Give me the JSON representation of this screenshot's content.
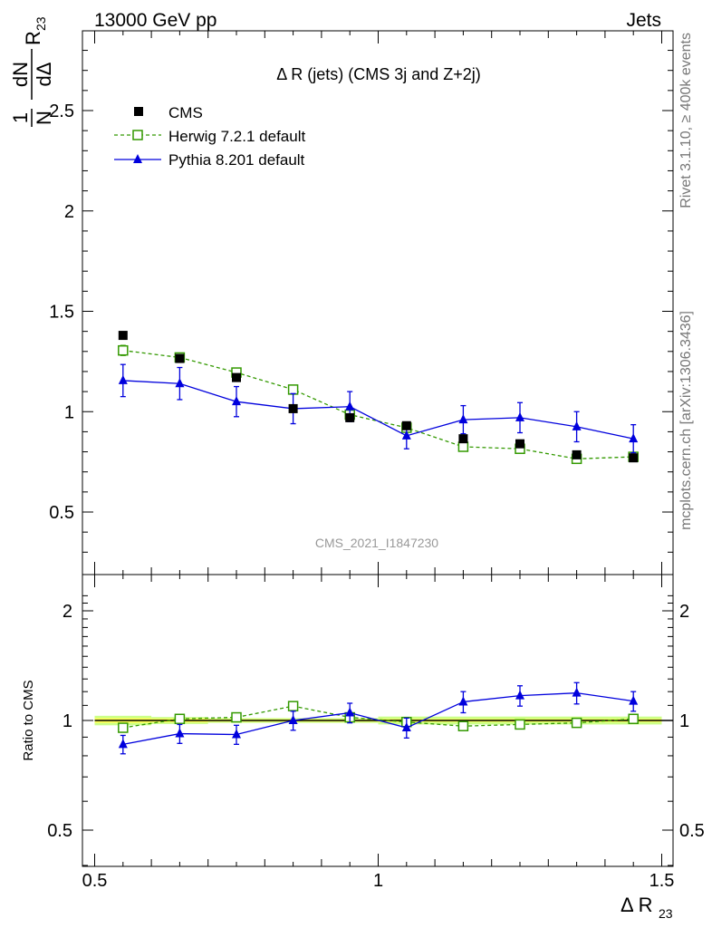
{
  "header": {
    "energy_label": "13000 GeV pp",
    "category_label": "Jets"
  },
  "side_labels": {
    "rivet": "Rivet 3.1.10, ≥ 400k events",
    "mcplots": "mcplots.cern.ch [arXiv:1306.3436]"
  },
  "colors": {
    "data": "#000000",
    "herwig": "#339900",
    "pythia": "#0000dd",
    "band_inner": "#ffff55",
    "band_outer": "#ccff88",
    "watermark": "#999999"
  },
  "chart_data": [
    {
      "type": "scatter",
      "panel": "main",
      "title": "Δ R (jets) (CMS 3j and Z+2j)",
      "watermark": "CMS_2021_I1847230",
      "ylabel": "1/N dN/dΔ R23",
      "xlim": [
        0.5,
        1.5
      ],
      "ylim": [
        0.2,
        2.95
      ],
      "yscale": "linear",
      "yticks": [
        0.5,
        1,
        1.5,
        2,
        2.5
      ],
      "ytick_labels": [
        "0.5",
        "1",
        "1.5",
        "2",
        "2.5"
      ],
      "legend_position": "top-left",
      "x": [
        0.55,
        0.65,
        0.75,
        0.85,
        0.95,
        1.05,
        1.15,
        1.25,
        1.35,
        1.45
      ],
      "series": [
        {
          "name": "CMS",
          "style": "markers",
          "marker": "square-filled",
          "values": [
            1.38,
            1.265,
            1.17,
            1.015,
            0.97,
            0.93,
            0.865,
            0.84,
            0.785,
            0.77
          ],
          "errors": [
            0.01,
            0.01,
            0.01,
            0.01,
            0.01,
            0.01,
            0.01,
            0.01,
            0.01,
            0.01
          ]
        },
        {
          "name": "Herwig 7.2.1 default",
          "style": "dashed",
          "marker": "square-open",
          "values": [
            1.305,
            1.27,
            1.195,
            1.11,
            0.985,
            0.92,
            0.825,
            0.815,
            0.765,
            0.775
          ],
          "errors": [
            0.025,
            0.02,
            0.02,
            0.02,
            0.015,
            0.015,
            0.015,
            0.015,
            0.015,
            0.015
          ]
        },
        {
          "name": "Pythia 8.201 default",
          "style": "solid",
          "marker": "triangle-filled",
          "values": [
            1.155,
            1.14,
            1.05,
            1.015,
            1.025,
            0.88,
            0.96,
            0.97,
            0.925,
            0.865
          ],
          "errors": [
            0.08,
            0.08,
            0.075,
            0.075,
            0.075,
            0.065,
            0.07,
            0.075,
            0.075,
            0.07
          ]
        }
      ]
    },
    {
      "type": "scatter",
      "panel": "ratio",
      "ylabel": "Ratio to CMS",
      "xlabel": "Δ R23",
      "xlim": [
        0.5,
        1.5
      ],
      "ylim": [
        0.4,
        2.3
      ],
      "yscale": "log",
      "yticks": [
        0.5,
        1,
        2
      ],
      "ytick_labels": [
        "0.5",
        "1",
        "2"
      ],
      "xticks": [
        0.5,
        1,
        1.5
      ],
      "xtick_labels": [
        "0.5",
        "1",
        "1.5"
      ],
      "reference_line": 1,
      "band_halfwidth": [
        {
          "from": 0.5,
          "to": 0.6,
          "inner": 0.015,
          "outer": 0.03
        },
        {
          "from": 0.6,
          "to": 0.7,
          "inner": 0.012,
          "outer": 0.022
        },
        {
          "from": 0.7,
          "to": 1.0,
          "inner": 0.008,
          "outer": 0.015
        },
        {
          "from": 1.0,
          "to": 1.5,
          "inner": 0.01,
          "outer": 0.025
        }
      ],
      "x": [
        0.55,
        0.65,
        0.75,
        0.85,
        0.95,
        1.05,
        1.15,
        1.25,
        1.35,
        1.45
      ],
      "series": [
        {
          "name": "Herwig 7.2.1 default",
          "style": "dashed",
          "marker": "square-open",
          "values": [
            0.955,
            1.01,
            1.02,
            1.095,
            1.02,
            0.99,
            0.965,
            0.975,
            0.985,
            1.01
          ],
          "errors": [
            0.01,
            0.01,
            0.01,
            0.01,
            0.01,
            0.01,
            0.01,
            0.01,
            0.01,
            0.01
          ]
        },
        {
          "name": "Pythia 8.201 default",
          "style": "solid",
          "marker": "triangle-filled",
          "values": [
            0.86,
            0.92,
            0.915,
            1.0,
            1.05,
            0.955,
            1.125,
            1.17,
            1.19,
            1.13
          ],
          "errors": [
            0.05,
            0.055,
            0.055,
            0.06,
            0.065,
            0.06,
            0.075,
            0.075,
            0.08,
            0.07
          ]
        }
      ]
    }
  ]
}
